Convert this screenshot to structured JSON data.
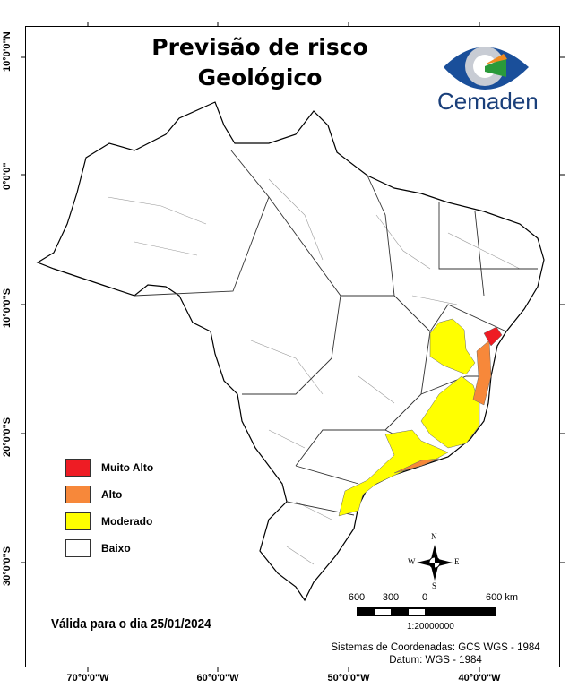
{
  "title": {
    "line1": "Previsão de risco",
    "line2": "Geológico"
  },
  "logo": {
    "name": "Cemaden"
  },
  "axes": {
    "lat_labels": [
      "10°0'0\"N",
      "0°0'0\"",
      "10°0'0\"S",
      "20°0'0\"S",
      "30°0'0\"S"
    ],
    "lon_labels": [
      "70°0'0\"W",
      "60°0'0\"W",
      "50°0'0\"W",
      "40°0'0\"W"
    ]
  },
  "legend": [
    {
      "label": "Muito Alto",
      "color": "#ee1c24"
    },
    {
      "label": "Alto",
      "color": "#f7883a"
    },
    {
      "label": "Moderado",
      "color": "#ffff00"
    },
    {
      "label": "Baixo",
      "color": "#ffffff"
    }
  ],
  "validity": "Válida para o dia 25/01/2024",
  "compass": {
    "n": "N",
    "s": "S",
    "e": "E",
    "w": "W"
  },
  "scale_bar": {
    "labels": [
      "600",
      "300",
      "0",
      "600 km"
    ],
    "ratio": "1:20000000"
  },
  "coordinate_system": {
    "line1": "Sistemas de Coordenadas: GCS WGS - 1984",
    "line2": "Datum: WGS - 1984"
  }
}
